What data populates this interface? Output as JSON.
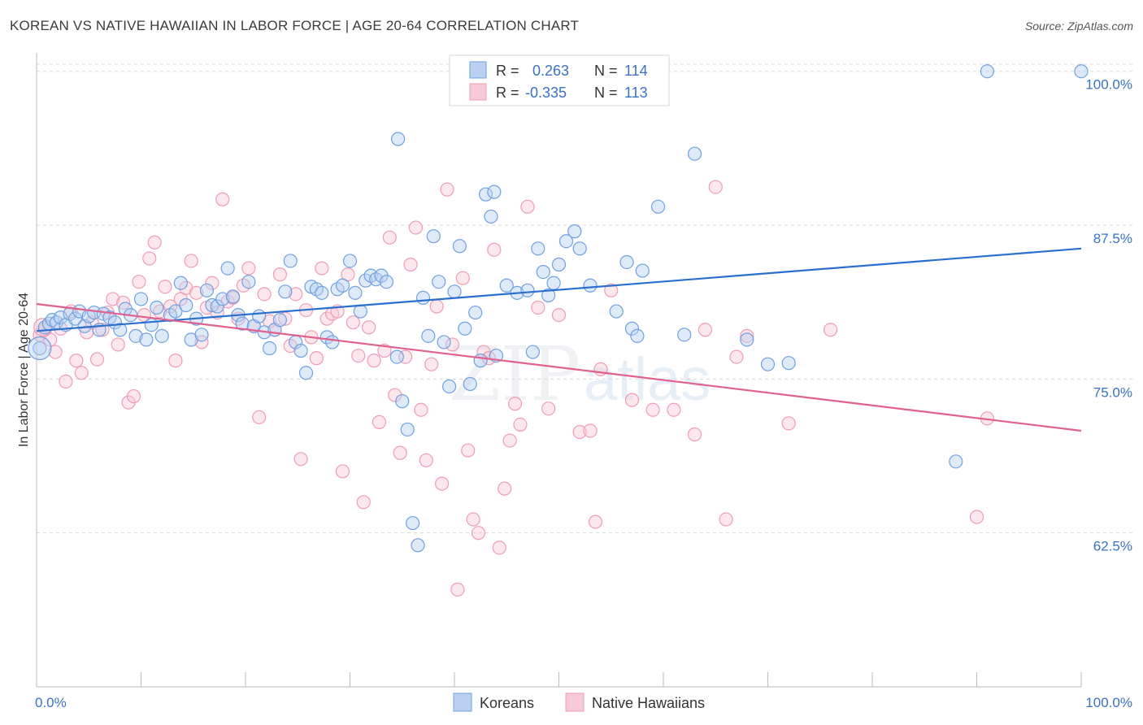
{
  "header": {
    "title": "KOREAN VS NATIVE HAWAIIAN IN LABOR FORCE | AGE 20-64 CORRELATION CHART",
    "source": "Source: ZipAtlas.com"
  },
  "watermark": {
    "zip": "ZIP",
    "atlas": "atlas"
  },
  "colors": {
    "korean": "#6fa0e0",
    "korean_fill": "#b9d0f1",
    "korean_line": "#2a6fcf",
    "hawaiian": "#ef9cb6",
    "hawaiian_fill": "#f8c9d8",
    "hawaiian_line": "#e0608e",
    "tick_label": "#3a72c4",
    "grid": "#d8d8d8"
  },
  "legend": {
    "rows": [
      {
        "r_label": "R =",
        "r_value": "0.263",
        "n_label": "N =",
        "n_value": "114"
      },
      {
        "r_label": "R =",
        "r_value": "-0.335",
        "n_label": "N =",
        "n_value": "113"
      }
    ]
  },
  "bottom_legend": {
    "korean": "Koreans",
    "hawaiian": "Native Hawaiians"
  },
  "chart_data": {
    "type": "scatter",
    "title": "KOREAN VS NATIVE HAWAIIAN IN LABOR FORCE | AGE 20-64 CORRELATION CHART",
    "xlabel": "",
    "ylabel": "In Labor Force | Age 20-64",
    "xlim": [
      0,
      100
    ],
    "ylim": [
      50,
      101.5
    ],
    "x_tick_labels": [
      "0.0%",
      "100.0%"
    ],
    "y_ticks": [
      62.5,
      75.0,
      87.5,
      100.0
    ],
    "y_tick_labels": [
      "62.5%",
      "75.0%",
      "87.5%",
      "100.0%"
    ],
    "grid": true,
    "legend_position": "top-center",
    "series": [
      {
        "name": "Koreans",
        "r": 0.263,
        "n": 114,
        "trend": {
          "x": [
            0,
            100
          ],
          "y": [
            78.9,
            85.6
          ]
        },
        "points": [
          [
            0.3,
            77.5
          ],
          [
            0.8,
            79.2
          ],
          [
            1.2,
            79.5
          ],
          [
            1.5,
            79.8
          ],
          [
            1.9,
            79.6
          ],
          [
            2.3,
            80.0
          ],
          [
            2.8,
            79.4
          ],
          [
            3.2,
            80.3
          ],
          [
            3.7,
            79.9
          ],
          [
            4.1,
            80.5
          ],
          [
            4.6,
            79.3
          ],
          [
            5.0,
            80.1
          ],
          [
            5.5,
            80.4
          ],
          [
            6.0,
            79.0
          ],
          [
            6.4,
            80.3
          ],
          [
            7.0,
            80.0
          ],
          [
            7.5,
            79.6
          ],
          [
            8.0,
            79.0
          ],
          [
            8.5,
            80.7
          ],
          [
            9.0,
            80.2
          ],
          [
            9.5,
            78.5
          ],
          [
            10.0,
            81.5
          ],
          [
            10.5,
            78.2
          ],
          [
            11.0,
            79.4
          ],
          [
            11.5,
            80.8
          ],
          [
            12.0,
            78.5
          ],
          [
            12.8,
            80.2
          ],
          [
            13.3,
            80.5
          ],
          [
            13.8,
            82.8
          ],
          [
            14.3,
            81.0
          ],
          [
            14.8,
            78.2
          ],
          [
            15.3,
            79.9
          ],
          [
            15.8,
            78.6
          ],
          [
            16.3,
            82.2
          ],
          [
            16.8,
            81.0
          ],
          [
            17.3,
            80.9
          ],
          [
            17.8,
            81.5
          ],
          [
            18.3,
            84.0
          ],
          [
            18.8,
            81.7
          ],
          [
            19.3,
            80.2
          ],
          [
            19.7,
            79.5
          ],
          [
            20.3,
            82.9
          ],
          [
            20.8,
            79.3
          ],
          [
            21.3,
            80.1
          ],
          [
            21.8,
            78.8
          ],
          [
            22.3,
            77.5
          ],
          [
            22.8,
            79.0
          ],
          [
            23.3,
            79.8
          ],
          [
            23.8,
            82.1
          ],
          [
            24.3,
            84.6
          ],
          [
            24.8,
            78.0
          ],
          [
            25.3,
            77.3
          ],
          [
            25.8,
            75.5
          ],
          [
            26.3,
            82.5
          ],
          [
            26.8,
            82.3
          ],
          [
            27.3,
            82.0
          ],
          [
            27.8,
            78.4
          ],
          [
            28.3,
            78.0
          ],
          [
            28.8,
            82.3
          ],
          [
            29.3,
            82.6
          ],
          [
            30.0,
            84.6
          ],
          [
            30.5,
            82.0
          ],
          [
            31.0,
            80.5
          ],
          [
            31.5,
            83.0
          ],
          [
            32.0,
            83.4
          ],
          [
            32.5,
            83.1
          ],
          [
            33.0,
            83.4
          ],
          [
            33.5,
            82.9
          ],
          [
            34.5,
            76.8
          ],
          [
            35.0,
            73.2
          ],
          [
            35.5,
            70.9
          ],
          [
            36.0,
            63.3
          ],
          [
            36.5,
            61.5
          ],
          [
            37.0,
            81.6
          ],
          [
            37.5,
            78.5
          ],
          [
            38.0,
            86.6
          ],
          [
            38.5,
            82.9
          ],
          [
            39.0,
            78.0
          ],
          [
            39.5,
            74.4
          ],
          [
            40.0,
            82.1
          ],
          [
            40.5,
            85.8
          ],
          [
            41.0,
            79.1
          ],
          [
            41.5,
            74.6
          ],
          [
            42.0,
            80.4
          ],
          [
            42.5,
            76.5
          ],
          [
            43.0,
            90.0
          ],
          [
            43.5,
            88.2
          ],
          [
            44.0,
            76.9
          ],
          [
            45.0,
            82.6
          ],
          [
            46.0,
            82.0
          ],
          [
            47.0,
            82.2
          ],
          [
            47.5,
            77.2
          ],
          [
            48.0,
            85.6
          ],
          [
            48.5,
            83.7
          ],
          [
            49.0,
            81.8
          ],
          [
            49.5,
            82.8
          ],
          [
            50.0,
            84.3
          ],
          [
            50.7,
            86.2
          ],
          [
            51.5,
            87.0
          ],
          [
            52.0,
            85.6
          ],
          [
            53.0,
            82.6
          ],
          [
            55.5,
            80.5
          ],
          [
            56.5,
            84.5
          ],
          [
            57.0,
            79.1
          ],
          [
            57.5,
            78.5
          ],
          [
            58.0,
            83.8
          ],
          [
            59.5,
            89.0
          ],
          [
            62.0,
            78.6
          ],
          [
            63.0,
            93.3
          ],
          [
            68.0,
            78.2
          ],
          [
            70.0,
            76.2
          ],
          [
            72.0,
            76.3
          ],
          [
            34.6,
            94.5
          ],
          [
            43.8,
            90.2
          ],
          [
            88.0,
            68.3
          ],
          [
            91.0,
            100.0
          ],
          [
            100.0,
            100.0
          ]
        ]
      },
      {
        "name": "Native Hawaiians",
        "r": -0.335,
        "n": 113,
        "trend": {
          "x": [
            0,
            100
          ],
          "y": [
            81.1,
            70.8
          ]
        },
        "points": [
          [
            0.3,
            78.6
          ],
          [
            0.8,
            79.0
          ],
          [
            1.3,
            78.2
          ],
          [
            1.8,
            77.2
          ],
          [
            2.3,
            79.1
          ],
          [
            2.8,
            74.8
          ],
          [
            3.3,
            80.5
          ],
          [
            3.8,
            76.5
          ],
          [
            4.3,
            75.5
          ],
          [
            4.8,
            78.8
          ],
          [
            5.3,
            79.6
          ],
          [
            5.8,
            76.6
          ],
          [
            6.3,
            79.0
          ],
          [
            6.8,
            80.4
          ],
          [
            7.3,
            81.5
          ],
          [
            7.8,
            77.8
          ],
          [
            8.3,
            81.2
          ],
          [
            8.8,
            73.1
          ],
          [
            9.3,
            73.6
          ],
          [
            9.8,
            82.9
          ],
          [
            10.3,
            80.2
          ],
          [
            10.8,
            84.8
          ],
          [
            11.3,
            86.1
          ],
          [
            11.8,
            80.5
          ],
          [
            12.3,
            82.5
          ],
          [
            12.8,
            80.9
          ],
          [
            13.3,
            76.5
          ],
          [
            13.8,
            81.5
          ],
          [
            14.3,
            82.4
          ],
          [
            14.8,
            84.6
          ],
          [
            15.3,
            82.0
          ],
          [
            15.8,
            78.0
          ],
          [
            16.3,
            80.8
          ],
          [
            16.8,
            82.8
          ],
          [
            17.3,
            80.4
          ],
          [
            17.8,
            89.6
          ],
          [
            18.3,
            81.3
          ],
          [
            18.8,
            81.6
          ],
          [
            19.3,
            79.9
          ],
          [
            19.8,
            82.6
          ],
          [
            20.3,
            84.0
          ],
          [
            20.8,
            79.3
          ],
          [
            21.3,
            71.9
          ],
          [
            21.8,
            81.9
          ],
          [
            22.3,
            79.7
          ],
          [
            22.8,
            79.0
          ],
          [
            23.3,
            83.5
          ],
          [
            23.8,
            79.9
          ],
          [
            24.3,
            77.7
          ],
          [
            24.8,
            81.9
          ],
          [
            25.3,
            68.5
          ],
          [
            25.8,
            80.6
          ],
          [
            26.3,
            78.4
          ],
          [
            26.8,
            76.7
          ],
          [
            27.3,
            84.0
          ],
          [
            27.8,
            79.9
          ],
          [
            28.3,
            80.3
          ],
          [
            28.8,
            80.5
          ],
          [
            29.3,
            67.5
          ],
          [
            29.8,
            83.5
          ],
          [
            30.3,
            79.6
          ],
          [
            30.8,
            76.9
          ],
          [
            31.3,
            65.0
          ],
          [
            31.8,
            79.2
          ],
          [
            32.3,
            76.5
          ],
          [
            32.8,
            71.5
          ],
          [
            33.3,
            77.3
          ],
          [
            33.8,
            86.5
          ],
          [
            34.3,
            73.7
          ],
          [
            34.8,
            69.0
          ],
          [
            35.3,
            76.8
          ],
          [
            35.8,
            84.3
          ],
          [
            36.3,
            87.3
          ],
          [
            36.8,
            72.5
          ],
          [
            37.3,
            68.4
          ],
          [
            37.8,
            76.2
          ],
          [
            38.3,
            80.9
          ],
          [
            38.8,
            66.5
          ],
          [
            39.3,
            90.4
          ],
          [
            39.8,
            77.8
          ],
          [
            40.3,
            57.9
          ],
          [
            40.8,
            83.2
          ],
          [
            41.3,
            69.2
          ],
          [
            41.8,
            63.6
          ],
          [
            42.3,
            62.5
          ],
          [
            42.8,
            77.2
          ],
          [
            43.3,
            76.7
          ],
          [
            43.8,
            85.5
          ],
          [
            44.3,
            61.3
          ],
          [
            44.8,
            66.1
          ],
          [
            45.3,
            70.0
          ],
          [
            45.8,
            73.0
          ],
          [
            46.3,
            71.3
          ],
          [
            47.0,
            89.0
          ],
          [
            48.0,
            80.8
          ],
          [
            49.0,
            72.6
          ],
          [
            50.0,
            80.2
          ],
          [
            52.0,
            70.7
          ],
          [
            53.0,
            70.8
          ],
          [
            53.5,
            63.4
          ],
          [
            54.0,
            75.8
          ],
          [
            55.0,
            82.2
          ],
          [
            57.0,
            73.3
          ],
          [
            59.0,
            72.5
          ],
          [
            61.0,
            72.5
          ],
          [
            63.0,
            70.5
          ],
          [
            64.0,
            79.0
          ],
          [
            65.0,
            90.6
          ],
          [
            66.0,
            63.6
          ],
          [
            67.0,
            76.8
          ],
          [
            68.0,
            78.5
          ],
          [
            72.0,
            71.4
          ],
          [
            76.0,
            79.0
          ],
          [
            90.0,
            63.8
          ],
          [
            91.0,
            71.8
          ]
        ]
      }
    ]
  }
}
